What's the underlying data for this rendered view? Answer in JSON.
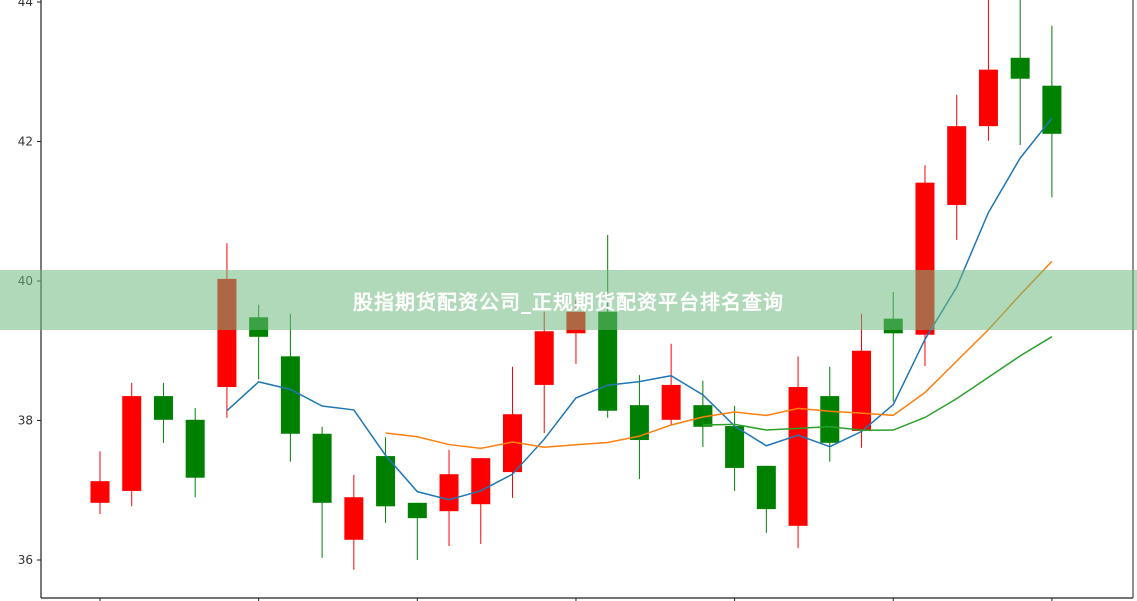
{
  "chart_data": {
    "type": "candlestick",
    "title": "",
    "xlabel": "",
    "ylabel": "",
    "ylim": [
      35.45,
      44.03
    ],
    "yticks": [
      36,
      38,
      40,
      42,
      44
    ],
    "xtick_every": 5,
    "grid": false,
    "colors": {
      "up": "#ff0000",
      "down": "#008000",
      "ma5": "#1f77b4",
      "ma10": "#ff7f0e",
      "ma20": "#2ca02c"
    },
    "moving_averages": [
      5,
      10,
      20
    ],
    "ohlc": [
      [
        36.82,
        37.56,
        36.66,
        37.13
      ],
      [
        36.99,
        38.54,
        36.77,
        38.35
      ],
      [
        38.35,
        38.54,
        37.68,
        38.01
      ],
      [
        38.01,
        38.18,
        36.9,
        37.18
      ],
      [
        38.48,
        40.54,
        38.04,
        40.03
      ],
      [
        39.48,
        39.66,
        38.59,
        39.2
      ],
      [
        38.92,
        39.53,
        37.41,
        37.81
      ],
      [
        37.81,
        37.91,
        36.03,
        36.82
      ],
      [
        36.29,
        37.22,
        35.86,
        36.9
      ],
      [
        37.49,
        37.76,
        36.53,
        36.77
      ],
      [
        36.82,
        36.82,
        36.0,
        36.6
      ],
      [
        36.7,
        37.58,
        36.2,
        37.23
      ],
      [
        36.8,
        37.46,
        36.23,
        37.46
      ],
      [
        37.26,
        38.77,
        36.89,
        38.09
      ],
      [
        38.51,
        39.56,
        37.82,
        39.28
      ],
      [
        39.25,
        39.73,
        38.81,
        39.56
      ],
      [
        39.56,
        40.66,
        38.04,
        38.14
      ],
      [
        38.22,
        38.65,
        37.16,
        37.72
      ],
      [
        38.01,
        39.1,
        37.94,
        38.51
      ],
      [
        38.22,
        38.57,
        37.62,
        37.91
      ],
      [
        37.92,
        38.21,
        36.99,
        37.32
      ],
      [
        37.35,
        37.35,
        36.39,
        36.73
      ],
      [
        36.49,
        38.92,
        36.17,
        38.48
      ],
      [
        38.35,
        38.77,
        37.41,
        37.68
      ],
      [
        37.85,
        39.53,
        37.61,
        39.0
      ],
      [
        39.46,
        39.84,
        38.27,
        39.25
      ],
      [
        39.23,
        41.66,
        38.78,
        41.41
      ],
      [
        41.09,
        42.67,
        40.59,
        42.22
      ],
      [
        42.22,
        44.03,
        42.01,
        43.03
      ],
      [
        43.2,
        44.03,
        41.95,
        42.9
      ],
      [
        42.8,
        43.66,
        41.2,
        42.11
      ]
    ]
  },
  "banner": {
    "text": "股指期货配资公司_正规期货配资平台排名查询"
  }
}
